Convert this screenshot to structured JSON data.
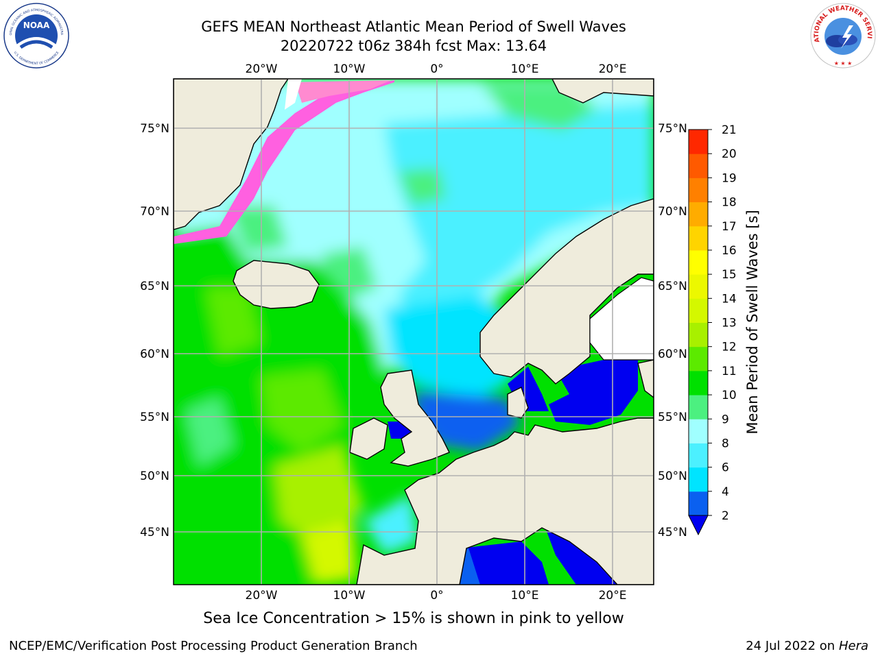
{
  "header": {
    "title_line1": "GEFS MEAN Northeast Atlantic Mean Period of Swell Waves",
    "title_line2": "20220722 t06z 384h fcst   Max: 13.64"
  },
  "map": {
    "lon_labels": [
      "20°W",
      "10°W",
      "0°",
      "10°E",
      "20°E"
    ],
    "lat_labels": [
      "75°N",
      "70°N",
      "65°N",
      "60°N",
      "55°N",
      "50°N",
      "45°N"
    ],
    "land_color": "#efecdc",
    "gridline_color": "#b0b0b0"
  },
  "colorbar": {
    "label": "Mean Period of Swell Waves [s]",
    "ticks": [
      "2",
      "4",
      "6",
      "8",
      "9",
      "10",
      "11",
      "12",
      "13",
      "14",
      "15",
      "16",
      "17",
      "18",
      "19",
      "20",
      "21"
    ],
    "colors": [
      "#0a60f0",
      "#00e4ff",
      "#4cf0ff",
      "#a0ffff",
      "#4cf080",
      "#00e000",
      "#5cea00",
      "#a8f000",
      "#d4f800",
      "#ecf800",
      "#ffff00",
      "#ffd400",
      "#ffac00",
      "#ff8000",
      "#ff5a00",
      "#ff2800"
    ],
    "under_color": "#0000f0"
  },
  "caption": "Sea Ice Concentration > 15% is shown in pink to yellow",
  "footer": {
    "left": "NCEP/EMC/Verification Post Processing Product Generation Branch",
    "date": "24 Jul 2022 on",
    "machine": "Hera"
  },
  "logos": {
    "noaa_text": "NOAA",
    "noaa_ring_text": "NATIONAL OCEANIC AND ATMOSPHERIC ADMINISTRATION",
    "noaa_ring_bottom": "U.S. DEPARTMENT OF COMMERCE",
    "nws_ring_text": "NATIONAL WEATHER SERVICE"
  }
}
